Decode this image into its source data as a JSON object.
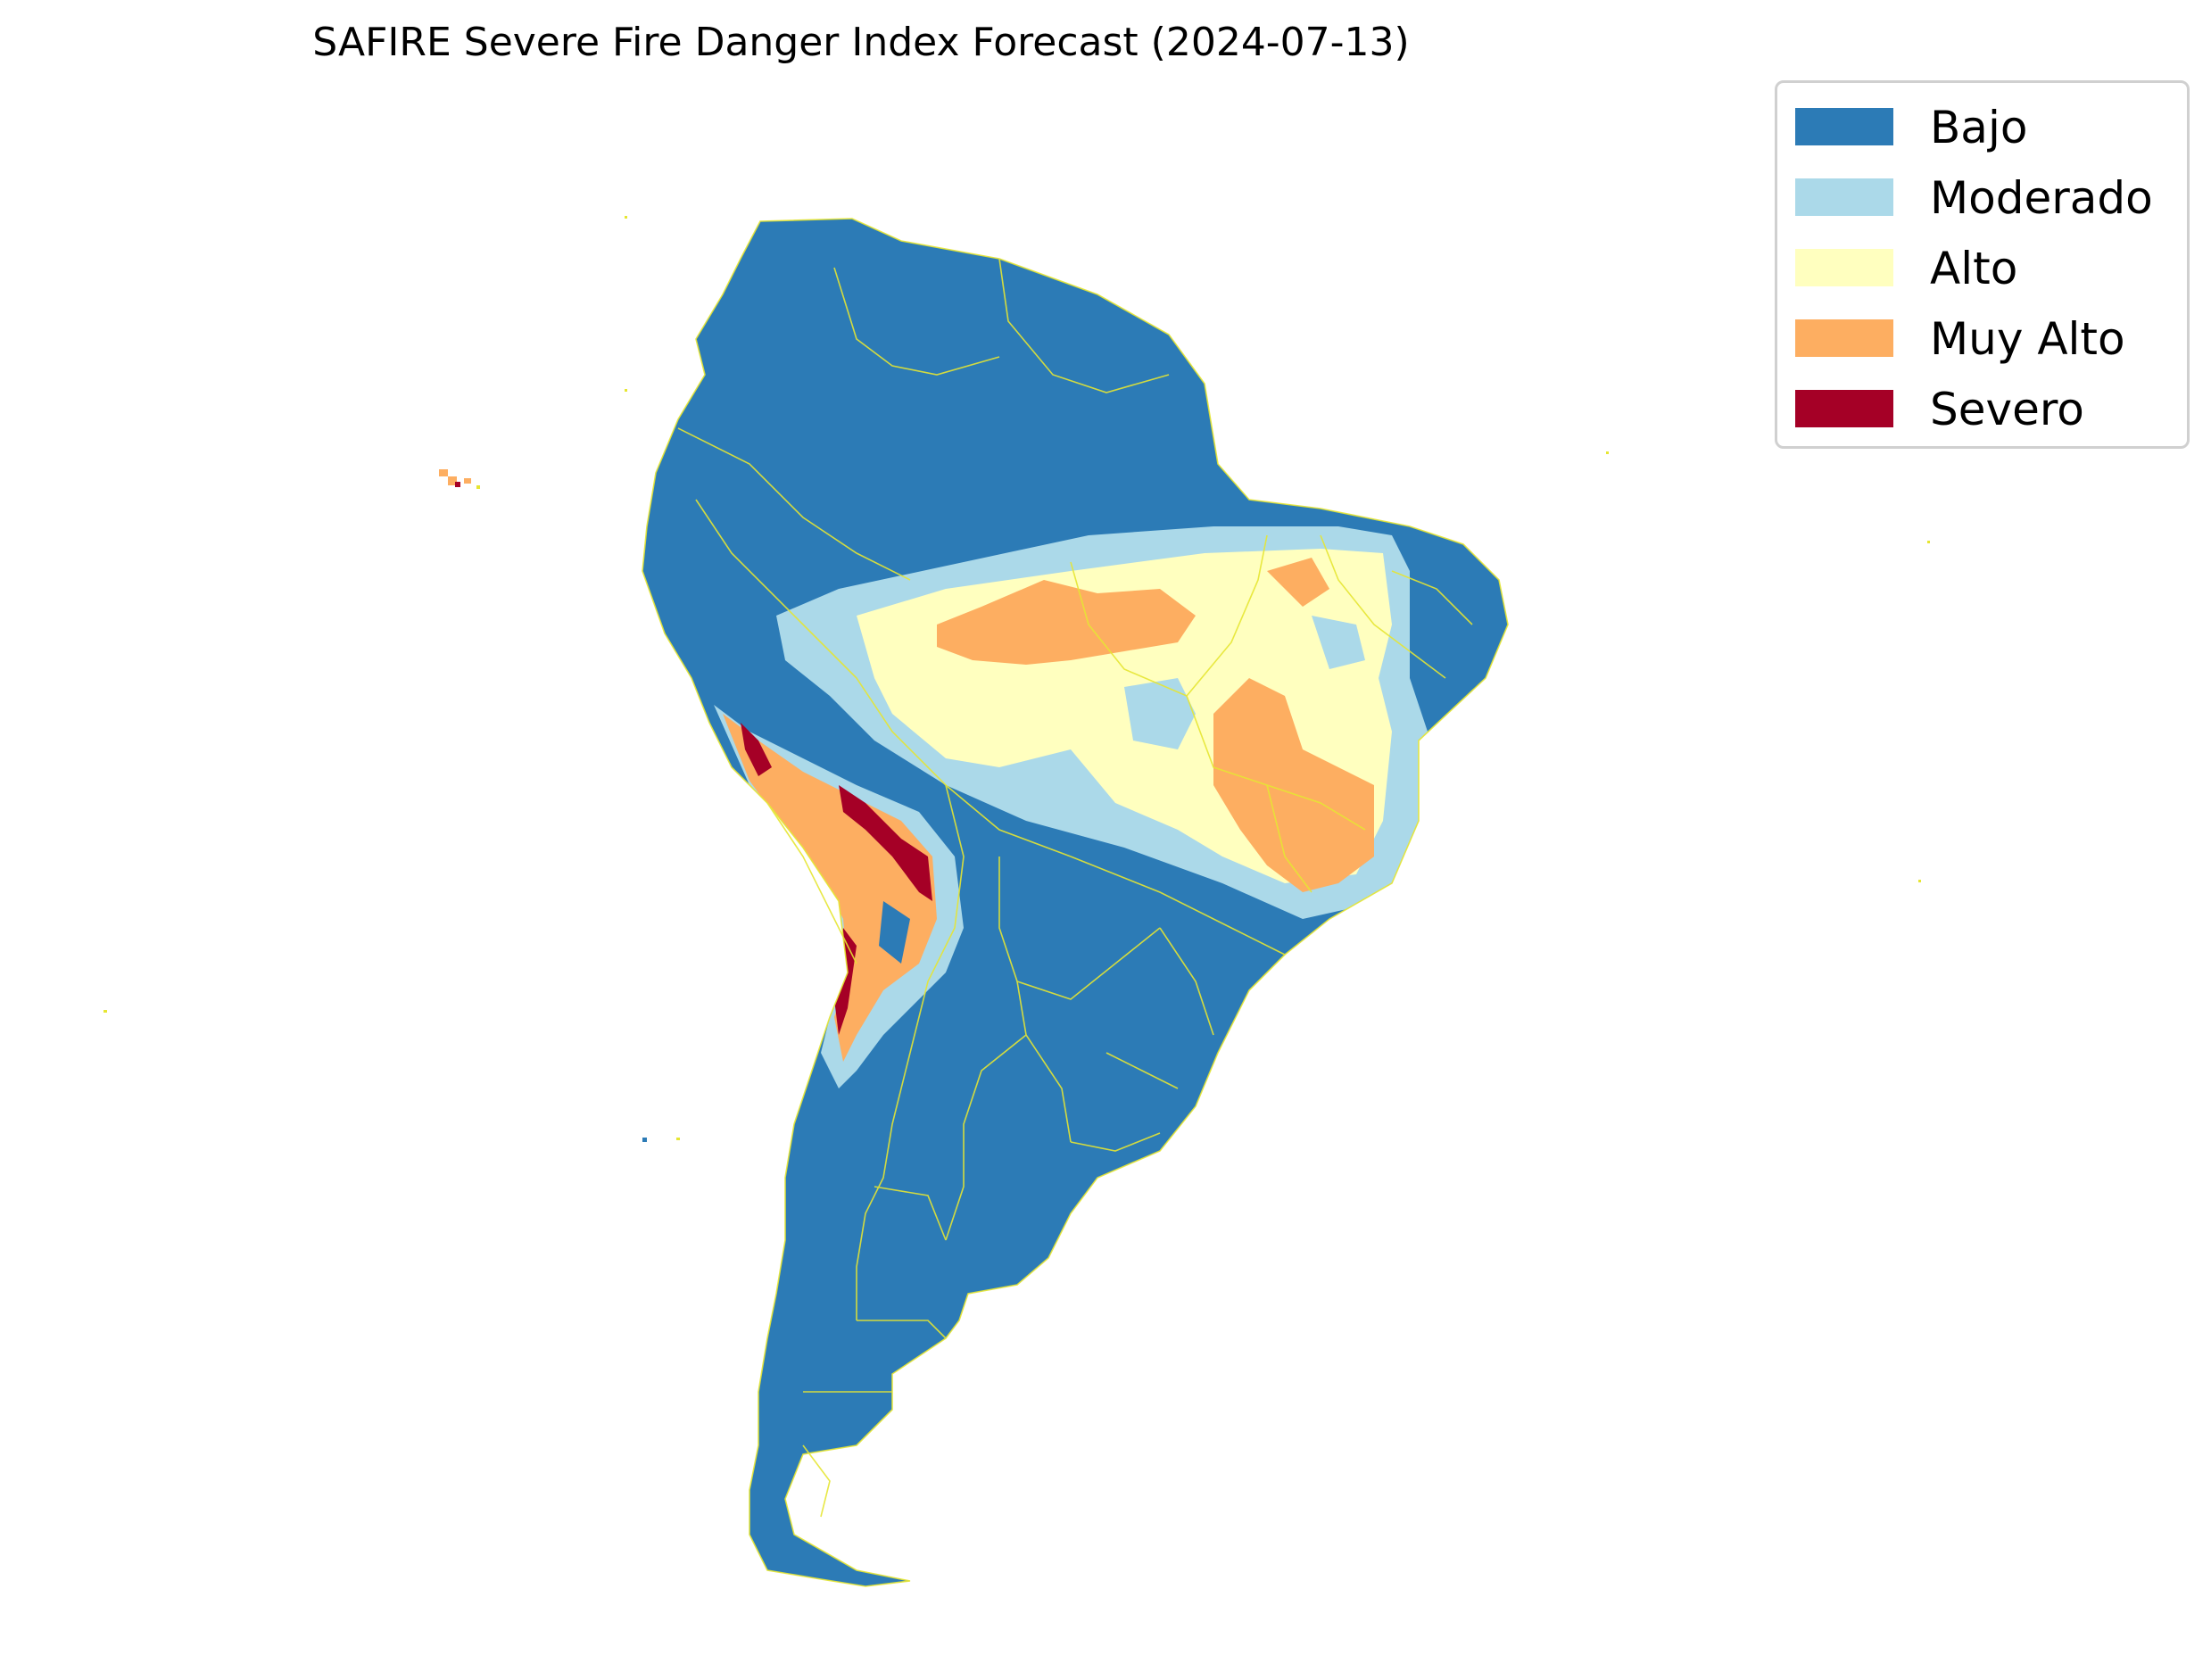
{
  "title": "SAFIRE Severe Fire Danger Index Forecast (2024-07-13)",
  "legend": {
    "items": [
      {
        "label": "Bajo",
        "color": "#2c7bb6"
      },
      {
        "label": "Moderado",
        "color": "#abd9e9"
      },
      {
        "label": "Alto",
        "color": "#ffffbf"
      },
      {
        "label": "Muy Alto",
        "color": "#fdae61"
      },
      {
        "label": "Severo",
        "color": "#a50026"
      }
    ]
  },
  "map": {
    "region": "South America",
    "border_color": "#e6e633"
  }
}
